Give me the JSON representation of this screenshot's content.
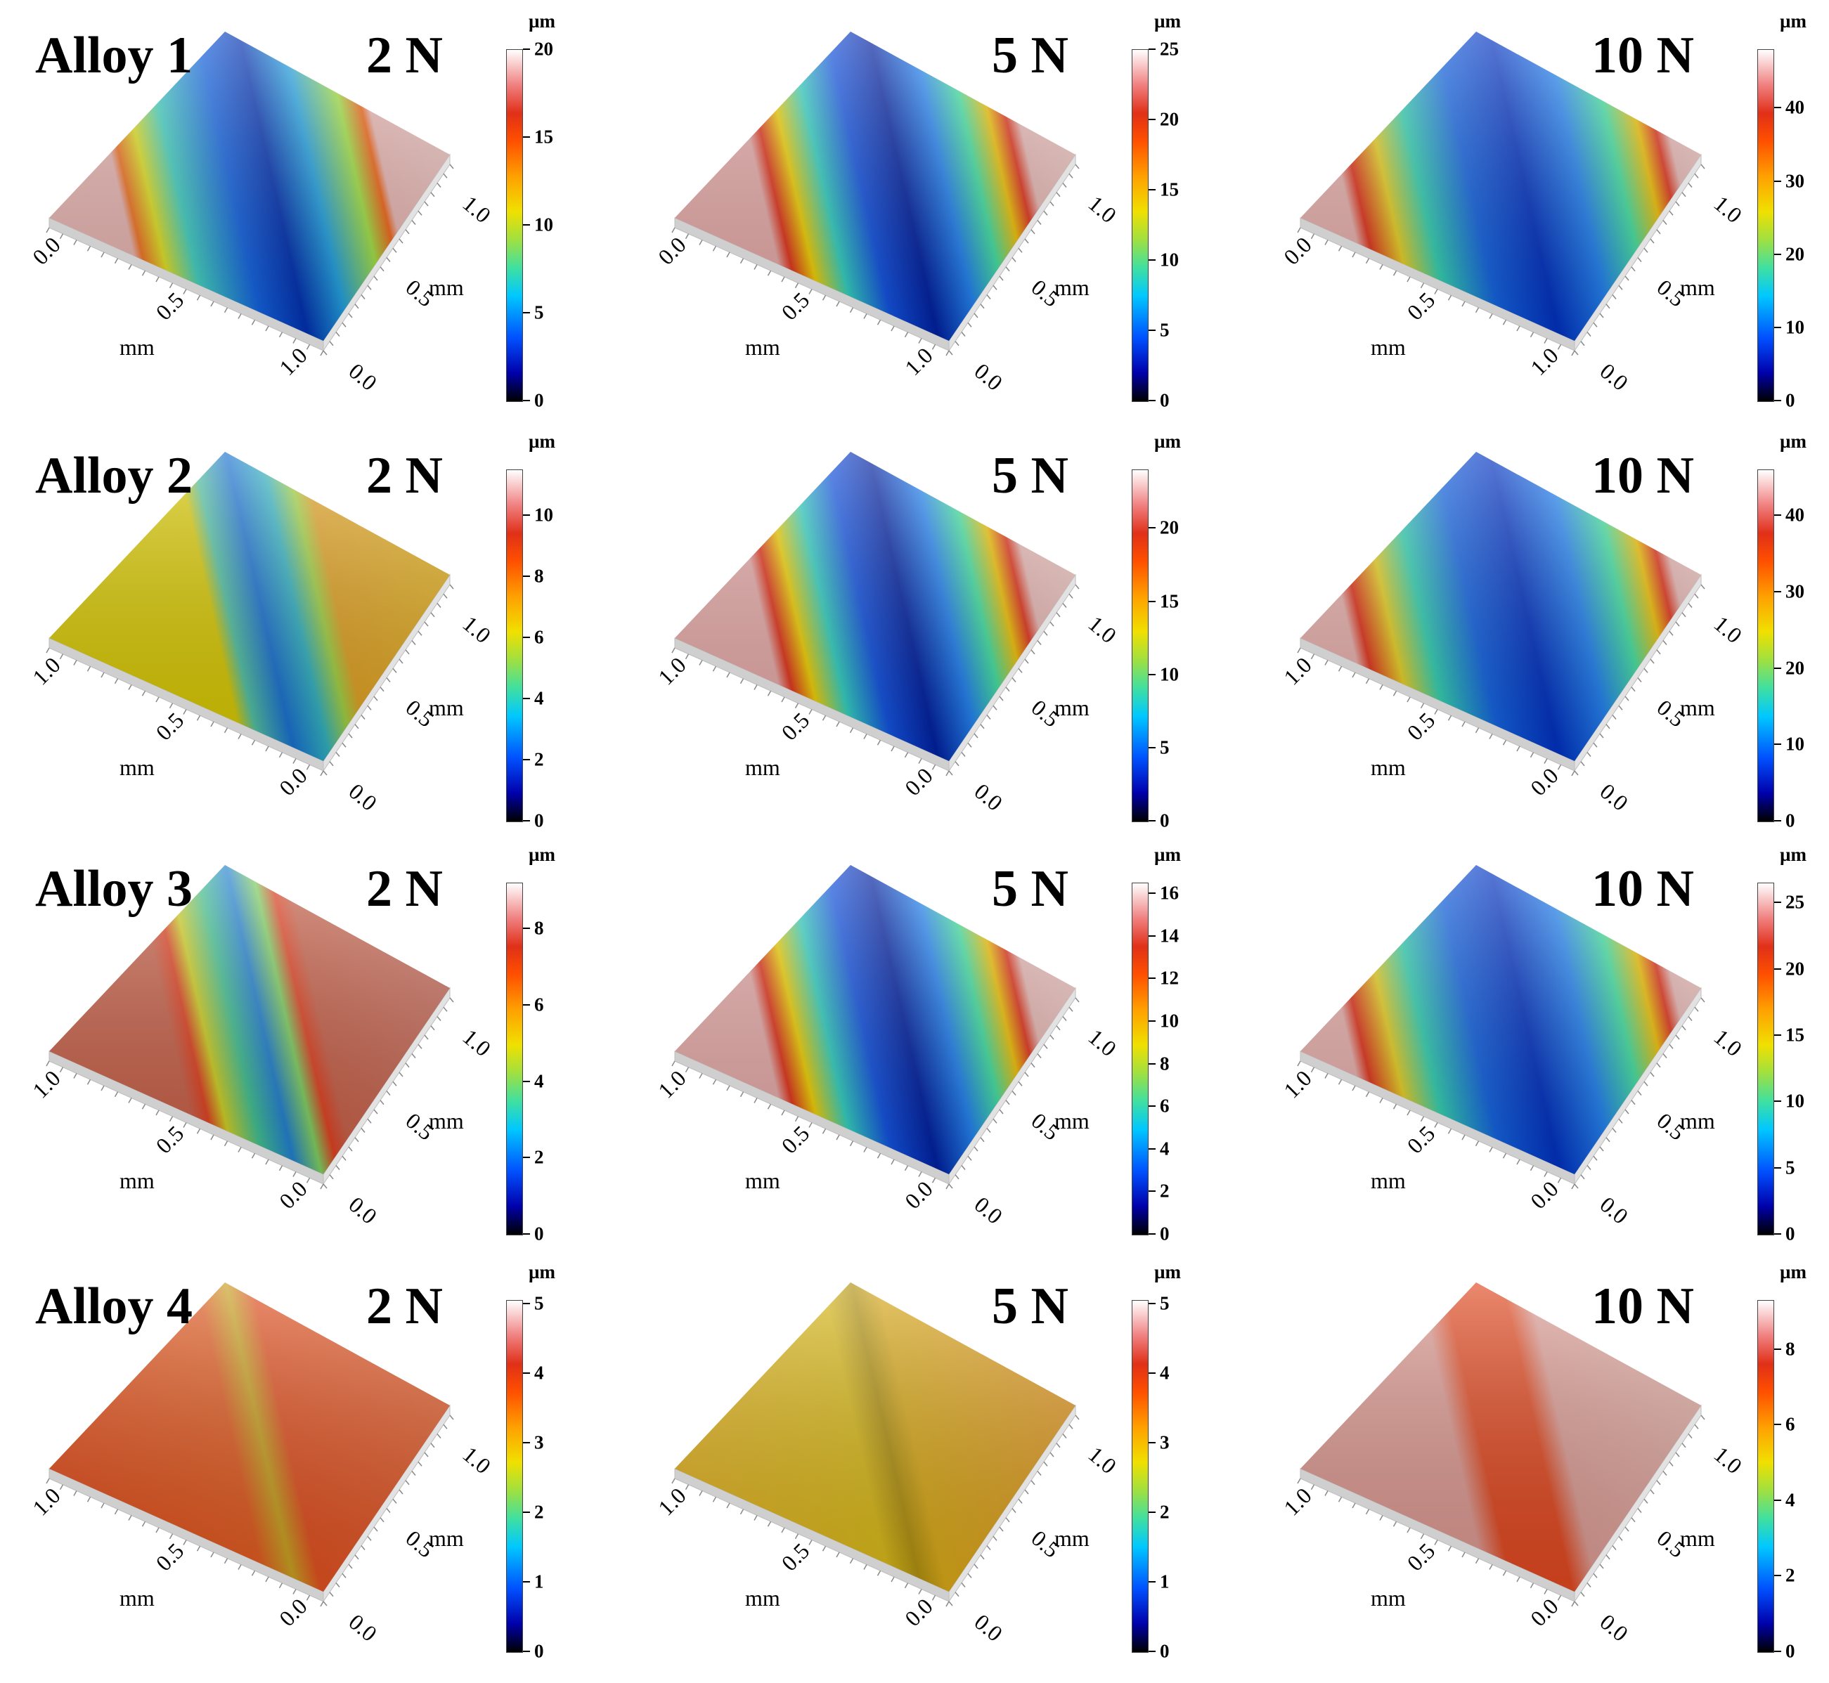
{
  "unit_label": "µm",
  "axis_unit": "mm",
  "rows": [
    {
      "alloy": "Alloy 1",
      "panels": [
        {
          "load": "2 N",
          "max": 20,
          "ticks": [
            "0",
            "5",
            "10",
            "15",
            "20"
          ],
          "tick_values": [
            0,
            5,
            10,
            15,
            20
          ],
          "x_ticks": [
            "0.0",
            "0.5",
            "1.0"
          ],
          "y_ticks": [
            "0.0",
            "0.5",
            "1.0"
          ],
          "scheme": "groove-round"
        },
        {
          "load": "5 N",
          "max": 25,
          "ticks": [
            "0",
            "5",
            "10",
            "15",
            "20",
            "25"
          ],
          "tick_values": [
            0,
            5,
            10,
            15,
            20,
            25
          ],
          "x_ticks": [
            "0.0",
            "0.5",
            "1.0"
          ],
          "y_ticks": [
            "0.0",
            "0.5",
            "1.0"
          ],
          "scheme": "groove"
        },
        {
          "load": "10 N",
          "max": 48,
          "ticks": [
            "0",
            "10",
            "20",
            "30",
            "40"
          ],
          "tick_values": [
            0,
            10,
            20,
            30,
            40
          ],
          "x_ticks": [
            "0.0",
            "0.5",
            "1.0"
          ],
          "y_ticks": [
            "0.0",
            "0.5",
            "1.0"
          ],
          "scheme": "groove-wide"
        }
      ]
    },
    {
      "alloy": "Alloy 2",
      "panels": [
        {
          "load": "2 N",
          "max": 11.5,
          "ticks": [
            "0",
            "2",
            "4",
            "6",
            "8",
            "10"
          ],
          "tick_values": [
            0,
            2,
            4,
            6,
            8,
            10
          ],
          "x_ticks": [
            "1.0",
            "0.5",
            "0.0"
          ],
          "y_ticks": [
            "0.0",
            "0.5",
            "1.0"
          ],
          "scheme": "yellow"
        },
        {
          "load": "5 N",
          "max": 24,
          "ticks": [
            "0",
            "5",
            "10",
            "15",
            "20"
          ],
          "tick_values": [
            0,
            5,
            10,
            15,
            20
          ],
          "x_ticks": [
            "1.0",
            "0.5",
            "0.0"
          ],
          "y_ticks": [
            "0.0",
            "0.5",
            "1.0"
          ],
          "scheme": "groove"
        },
        {
          "load": "10 N",
          "max": 46,
          "ticks": [
            "0",
            "10",
            "20",
            "30",
            "40"
          ],
          "tick_values": [
            0,
            10,
            20,
            30,
            40
          ],
          "x_ticks": [
            "1.0",
            "0.5",
            "0.0"
          ],
          "y_ticks": [
            "0.0",
            "0.5",
            "1.0"
          ],
          "scheme": "groove-wide"
        }
      ]
    },
    {
      "alloy": "Alloy 3",
      "panels": [
        {
          "load": "2 N",
          "max": 9.2,
          "ticks": [
            "0",
            "2",
            "4",
            "6",
            "8"
          ],
          "tick_values": [
            0,
            2,
            4,
            6,
            8
          ],
          "x_ticks": [
            "1.0",
            "0.5",
            "0.0"
          ],
          "y_ticks": [
            "0.0",
            "0.5",
            "1.0"
          ],
          "scheme": "groove-red"
        },
        {
          "load": "5 N",
          "max": 16.5,
          "ticks": [
            "0",
            "2",
            "4",
            "6",
            "8",
            "10",
            "12",
            "14",
            "16"
          ],
          "tick_values": [
            0,
            2,
            4,
            6,
            8,
            10,
            12,
            14,
            16
          ],
          "x_ticks": [
            "1.0",
            "0.5",
            "0.0"
          ],
          "y_ticks": [
            "0.0",
            "0.5",
            "1.0"
          ],
          "scheme": "groove"
        },
        {
          "load": "10 N",
          "max": 26.5,
          "ticks": [
            "0",
            "5",
            "10",
            "15",
            "20",
            "25"
          ],
          "tick_values": [
            0,
            5,
            10,
            15,
            20,
            25
          ],
          "x_ticks": [
            "1.0",
            "0.5",
            "0.0"
          ],
          "y_ticks": [
            "0.0",
            "0.5",
            "1.0"
          ],
          "scheme": "groove-wide"
        }
      ]
    },
    {
      "alloy": "Alloy 4",
      "panels": [
        {
          "load": "2 N",
          "max": 5.05,
          "ticks": [
            "0",
            "1",
            "2",
            "3",
            "4",
            "5"
          ],
          "tick_values": [
            0,
            1,
            2,
            3,
            4,
            5
          ],
          "x_ticks": [
            "1.0",
            "0.5",
            "0.0"
          ],
          "y_ticks": [
            "0.0",
            "0.5",
            "1.0"
          ],
          "scheme": "flat-red"
        },
        {
          "load": "5 N",
          "max": 5.05,
          "ticks": [
            "0",
            "1",
            "2",
            "3",
            "4",
            "5"
          ],
          "tick_values": [
            0,
            1,
            2,
            3,
            4,
            5
          ],
          "x_ticks": [
            "1.0",
            "0.5",
            "0.0"
          ],
          "y_ticks": [
            "0.0",
            "0.5",
            "1.0"
          ],
          "scheme": "flat-yellow"
        },
        {
          "load": "10 N",
          "max": 9.3,
          "ticks": [
            "0",
            "2",
            "4",
            "6",
            "8"
          ],
          "tick_values": [
            0,
            2,
            4,
            6,
            8
          ],
          "x_ticks": [
            "1.0",
            "0.5",
            "0.0"
          ],
          "y_ticks": [
            "0.0",
            "0.5",
            "1.0"
          ],
          "scheme": "flat-pink"
        }
      ]
    }
  ]
}
